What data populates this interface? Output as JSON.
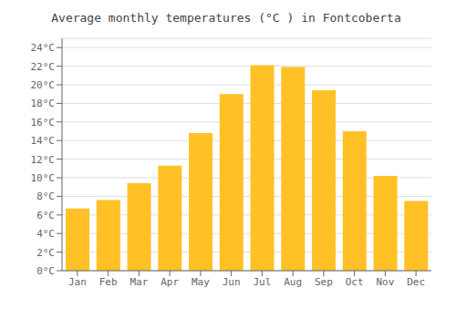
{
  "chart_data": {
    "type": "bar",
    "title": "Average monthly temperatures (°C ) in Fontcoberta",
    "categories": [
      "Jan",
      "Feb",
      "Mar",
      "Apr",
      "May",
      "Jun",
      "Jul",
      "Aug",
      "Sep",
      "Oct",
      "Nov",
      "Dec"
    ],
    "values": [
      6.7,
      7.6,
      9.4,
      11.3,
      14.8,
      19.0,
      22.1,
      21.9,
      19.4,
      15.0,
      10.2,
      7.5
    ],
    "color": "#FFC125",
    "ylim": [
      0,
      25
    ],
    "yticks": [
      {
        "value": 0,
        "label": "0°C"
      },
      {
        "value": 2,
        "label": "2°C"
      },
      {
        "value": 4,
        "label": "4°C"
      },
      {
        "value": 6,
        "label": "6°C"
      },
      {
        "value": 8,
        "label": "8°C"
      },
      {
        "value": 10,
        "label": "10°C"
      },
      {
        "value": 12,
        "label": "12°C"
      },
      {
        "value": 14,
        "label": "14°C"
      },
      {
        "value": 16,
        "label": "16°C"
      },
      {
        "value": 18,
        "label": "18°C"
      },
      {
        "value": 20,
        "label": "20°C"
      },
      {
        "value": 22,
        "label": "22°C"
      },
      {
        "value": 24,
        "label": "24°C"
      }
    ],
    "grid": true
  }
}
